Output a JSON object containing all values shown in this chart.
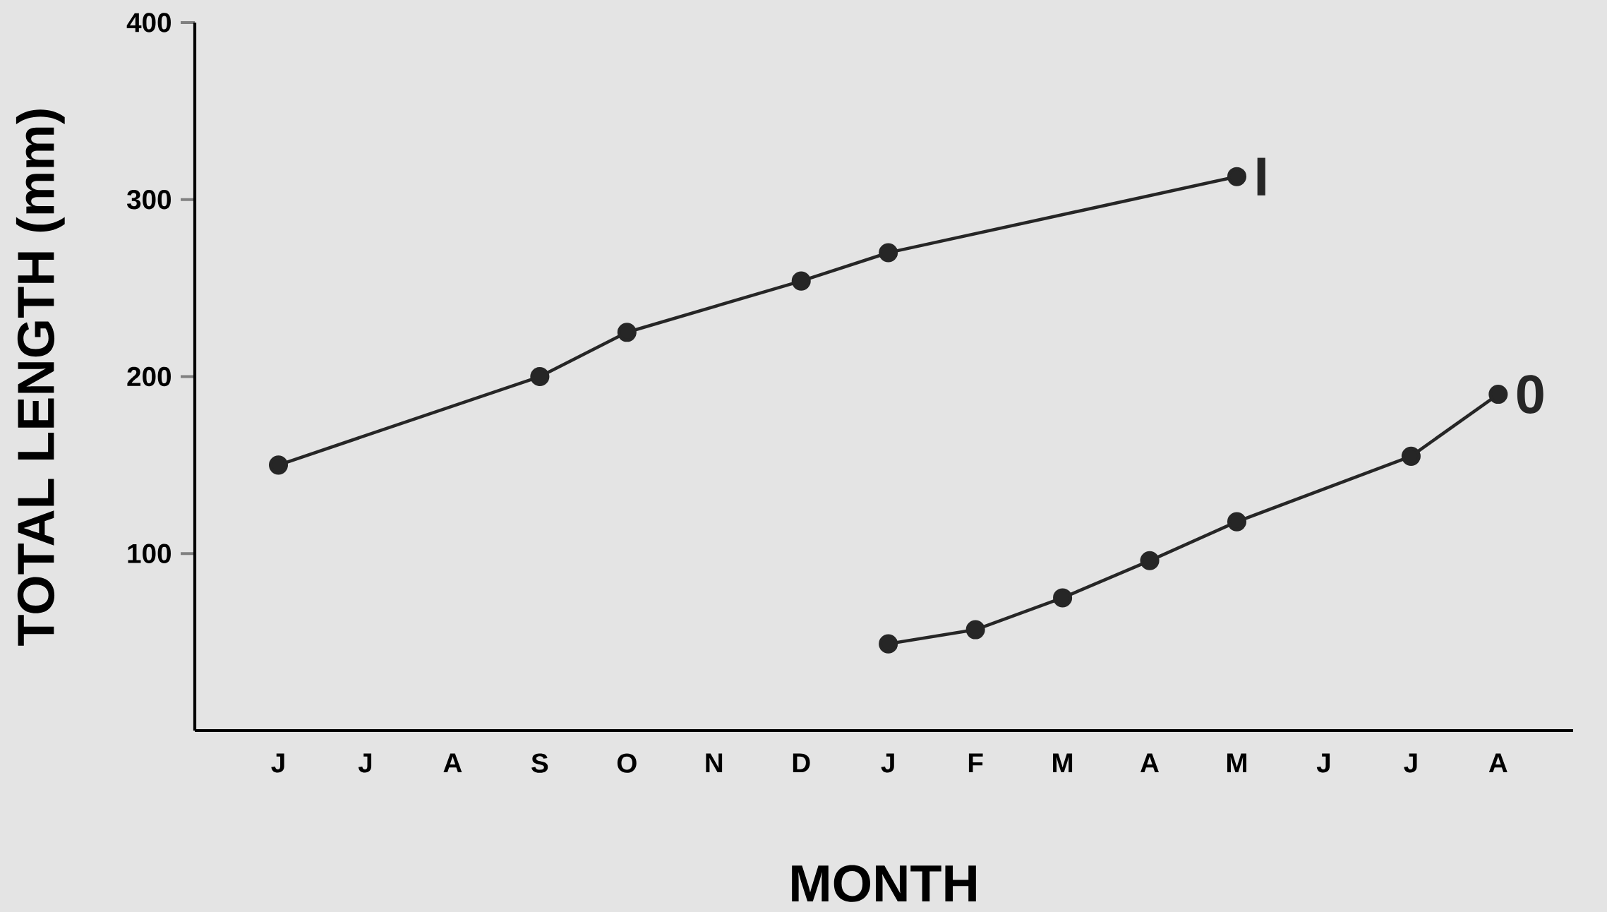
{
  "chart_data": {
    "type": "line",
    "xlabel": "MONTH",
    "ylabel": "TOTAL LENGTH (mm)",
    "categories": [
      "J",
      "J",
      "A",
      "S",
      "O",
      "N",
      "D",
      "J",
      "F",
      "M",
      "A",
      "M",
      "J",
      "J",
      "A"
    ],
    "ylim": [
      0,
      400
    ],
    "yticks": [
      100,
      200,
      300,
      400
    ],
    "marker": "circle",
    "legend": "right",
    "line_style": "solid",
    "series": [
      {
        "name": "I",
        "color": "#262626",
        "values": [
          150,
          null,
          null,
          200,
          225,
          null,
          254,
          270,
          null,
          null,
          null,
          313,
          null,
          null,
          null
        ]
      },
      {
        "name": "0",
        "color": "#262626",
        "values": [
          null,
          null,
          null,
          null,
          null,
          null,
          null,
          49,
          57,
          75,
          96,
          118,
          null,
          155,
          190
        ]
      }
    ]
  }
}
